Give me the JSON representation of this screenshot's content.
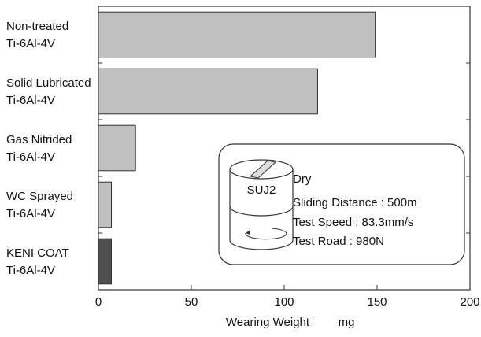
{
  "chart_data": {
    "type": "hbar",
    "categories": [
      [
        "Non-treated",
        "Ti-6Al-4V"
      ],
      [
        "Solid Lubricated",
        "Ti-6Al-4V"
      ],
      [
        "Gas Nitrided",
        "Ti-6Al-4V"
      ],
      [
        "WC Sprayed",
        "Ti-6Al-4V"
      ],
      [
        "KENI COAT",
        "Ti-6Al-4V"
      ]
    ],
    "values": [
      149,
      118,
      20,
      7,
      7
    ],
    "colors": [
      "#c0c0c0",
      "#c0c0c0",
      "#c0c0c0",
      "#c0c0c0",
      "#505050"
    ],
    "xlim": [
      0,
      200
    ],
    "xticks": [
      0,
      50,
      100,
      150,
      200
    ],
    "xlabel": "Wearing Weight",
    "xunit": "mg",
    "annotation": {
      "specimen": "SUJ2",
      "lines": [
        "Dry",
        "Sliding Distance : 500m",
        "Test Speed : 83.3mm/s",
        "Test Road : 980N"
      ]
    }
  }
}
